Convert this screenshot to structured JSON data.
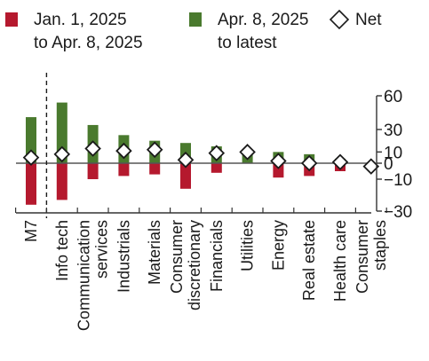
{
  "chart_data": {
    "type": "bar",
    "legend": {
      "placement": "top",
      "entries": [
        {
          "lines": [
            "Jan. 1, 2025",
            "to Apr. 8, 2025"
          ],
          "color": "#b5192e",
          "kind": "bar"
        },
        {
          "lines": [
            "Apr. 8, 2025",
            "to latest"
          ],
          "color": "#4a7a2e",
          "kind": "bar"
        },
        {
          "lines": [
            "Net"
          ],
          "color": "#ffffff",
          "kind": "diamond"
        }
      ]
    },
    "categories": [
      [
        "M7"
      ],
      [
        "Info tech"
      ],
      [
        "Communication",
        "services"
      ],
      [
        "Industrials"
      ],
      [
        "Materials"
      ],
      [
        "Consumer",
        "discretionary"
      ],
      [
        "Financials"
      ],
      [
        "Utilities"
      ],
      [
        "Energy"
      ],
      [
        "Real estate"
      ],
      [
        "Health care"
      ],
      [
        "Consumer",
        "staples"
      ]
    ],
    "series": [
      {
        "name": "Jan. 1, 2025 to Apr. 8, 2025",
        "color": "#b5192e",
        "values": [
          -26,
          -23,
          -10,
          -8,
          -7,
          -16,
          -6,
          0,
          -9,
          -8,
          -5,
          -2
        ]
      },
      {
        "name": "Apr. 8, 2025 to latest",
        "color": "#4a7a2e",
        "values": [
          41,
          54,
          34,
          25,
          20,
          18,
          15,
          10,
          10,
          8,
          4,
          0
        ]
      },
      {
        "name": "Net",
        "color": "#ffffff",
        "values": [
          5,
          8,
          13,
          11,
          12,
          3,
          9,
          10,
          2,
          0,
          1,
          -2
        ]
      }
    ],
    "left_axis": {
      "ylim": [
        -30,
        60
      ]
    },
    "right_axis": {
      "ticks": [
        {
          "label": "60",
          "value": 60
        },
        {
          "label": "30",
          "value": 30
        },
        {
          "label": "10",
          "value": 10
        },
        {
          "label": "0",
          "value": 0
        },
        {
          "label": "−10",
          "value": -10
        },
        {
          "label": "−30",
          "value": -30
        }
      ]
    },
    "zero_line": true,
    "separator_after_index": 0,
    "grid": false
  }
}
